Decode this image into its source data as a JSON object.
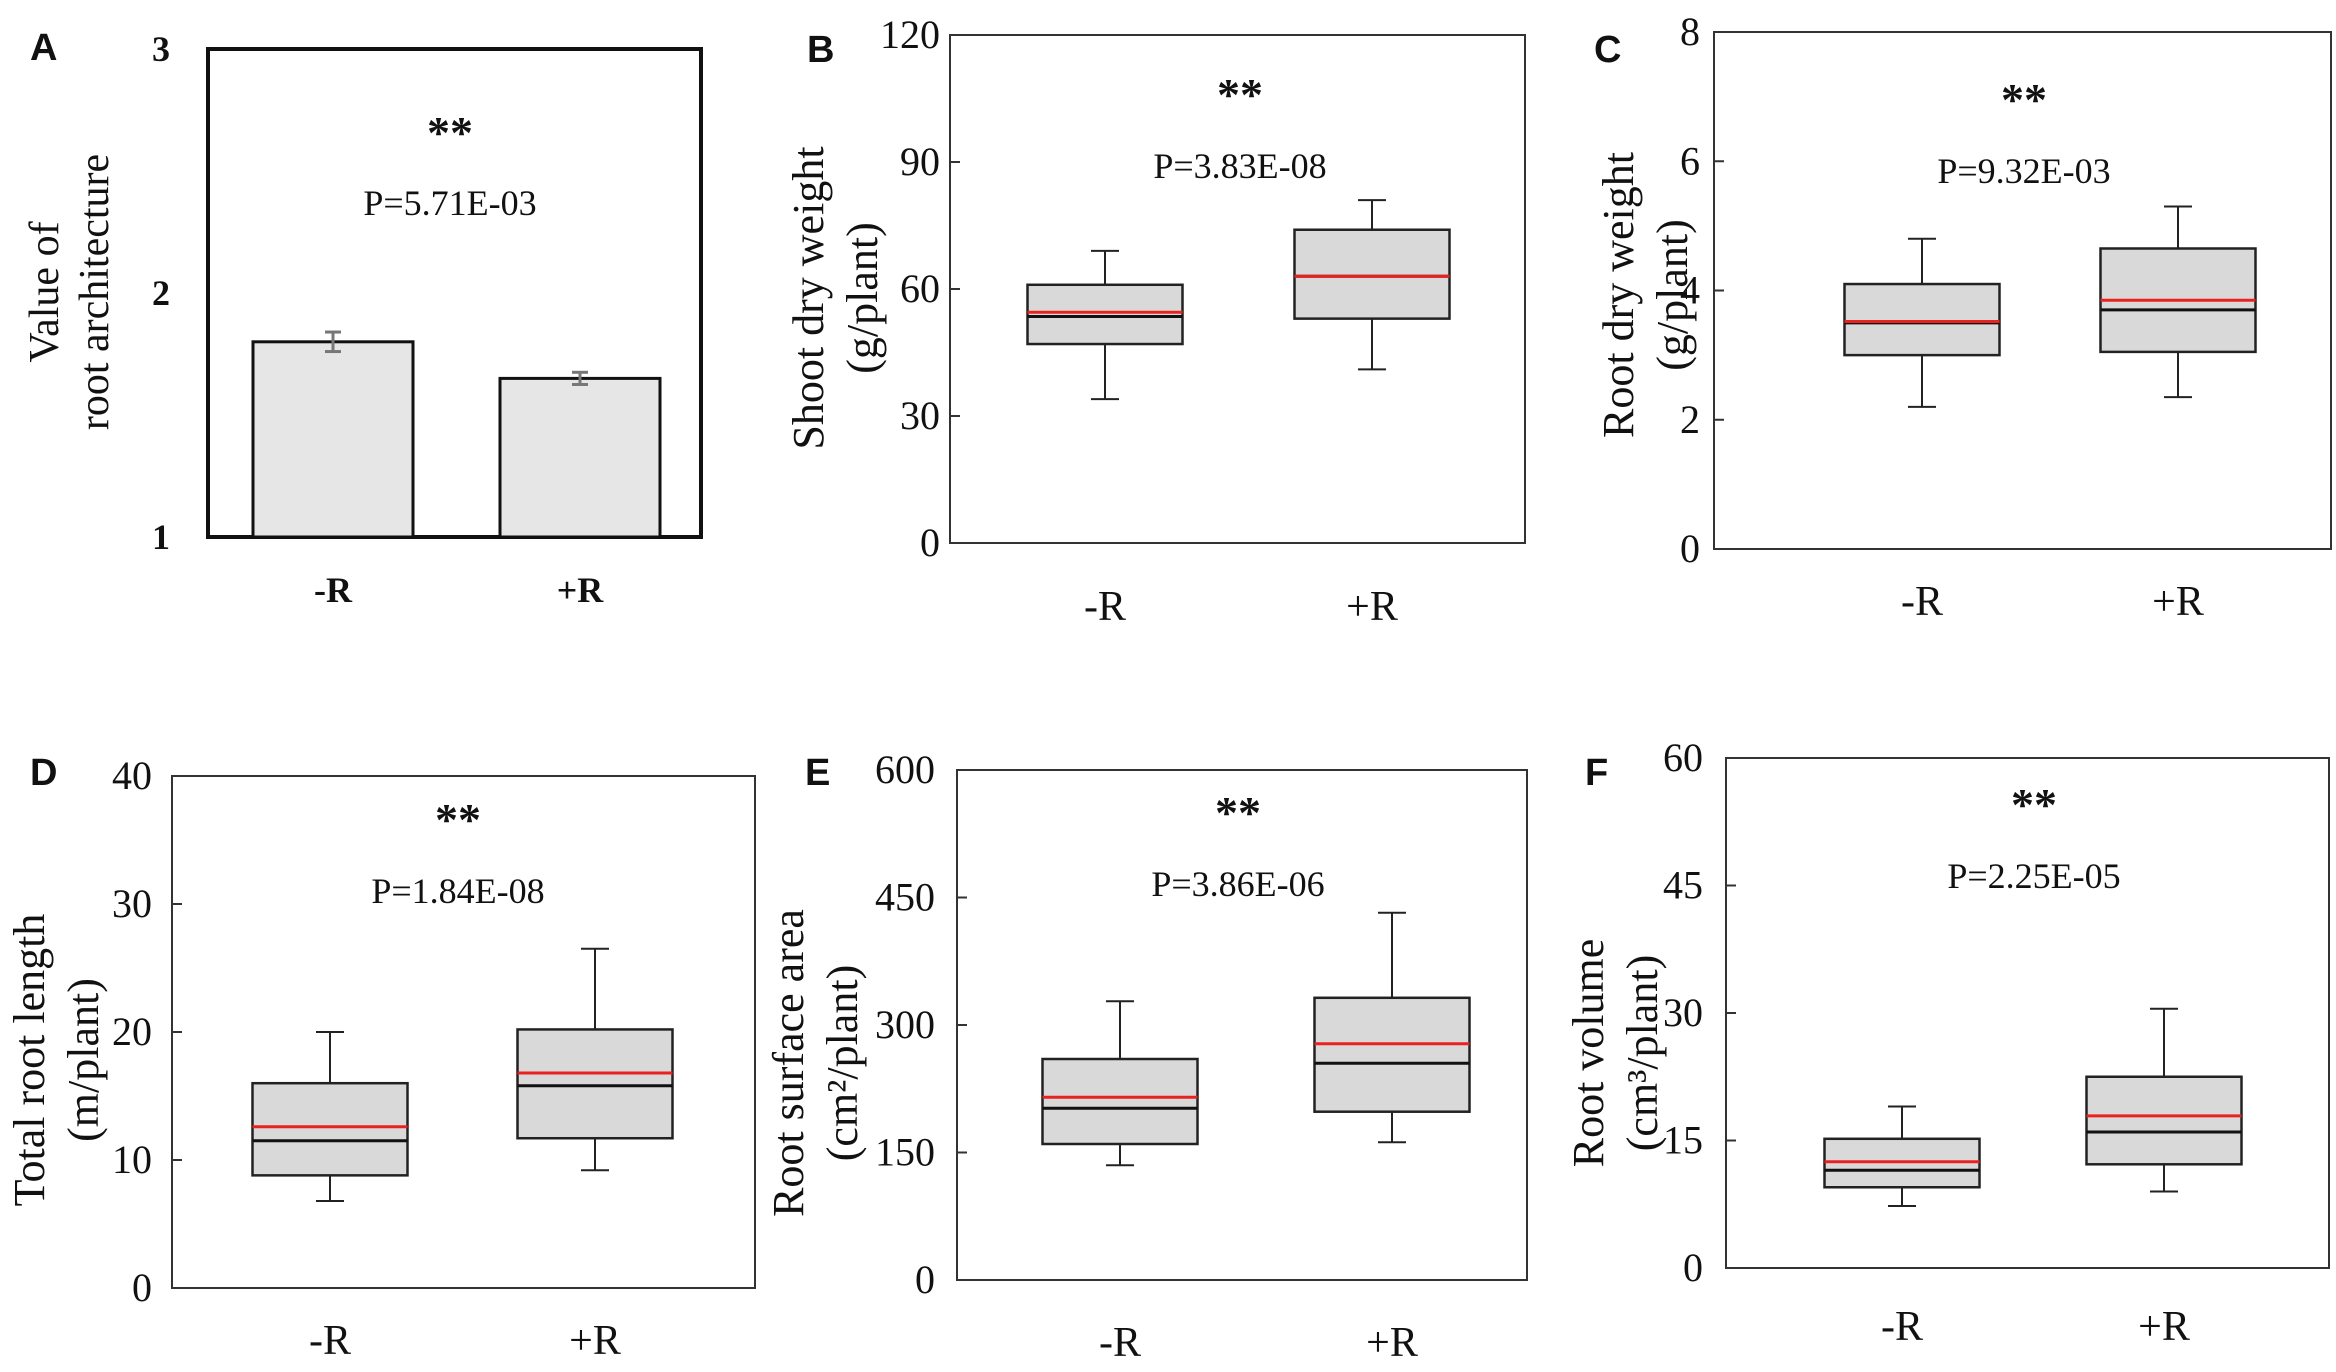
{
  "figure": {
    "colors": {
      "box_fill": "#d9d9d9",
      "bar_fill": "#e6e6e6",
      "mean_line": "#e8231f",
      "median_line": "#111111",
      "frame": "#333333",
      "error_bar": "#777777"
    }
  },
  "chart_data": [
    {
      "panel": "A",
      "type": "bar",
      "categories": [
        "-R",
        "+R"
      ],
      "values": [
        1.8,
        1.65
      ],
      "errors": [
        0.04,
        0.025
      ],
      "ylabel": [
        "Value of",
        "root architecture"
      ],
      "yticks": [
        "1",
        "2",
        "3"
      ],
      "ylim": [
        1,
        3
      ],
      "significance": "**",
      "p_value": "P=5.71E-03"
    },
    {
      "panel": "B",
      "type": "box",
      "categories": [
        "-R",
        "+R"
      ],
      "boxes": [
        {
          "min": 34,
          "q1": 47,
          "median": 53.5,
          "mean": 54.5,
          "q3": 61,
          "max": 69
        },
        {
          "min": 41,
          "q1": 53,
          "median": 63,
          "mean": 63,
          "q3": 74,
          "max": 81
        }
      ],
      "ylabel": [
        "Shoot dry weight",
        "(g/plant)"
      ],
      "yticks": [
        "0",
        "30",
        "60",
        "90",
        "120"
      ],
      "ylim": [
        0,
        120
      ],
      "significance": "**",
      "p_value": "P=3.83E-08"
    },
    {
      "panel": "C",
      "type": "box",
      "categories": [
        "-R",
        "+R"
      ],
      "boxes": [
        {
          "min": 2.2,
          "q1": 3.0,
          "median": 3.5,
          "mean": 3.52,
          "q3": 4.1,
          "max": 4.8
        },
        {
          "min": 2.35,
          "q1": 3.05,
          "median": 3.7,
          "mean": 3.85,
          "q3": 4.65,
          "max": 5.3
        }
      ],
      "ylabel": [
        "Root dry weight",
        "(g/plant)"
      ],
      "yticks": [
        "0",
        "2",
        "4",
        "6",
        "8"
      ],
      "ylim": [
        0,
        8
      ],
      "significance": "**",
      "p_value": "P=9.32E-03"
    },
    {
      "panel": "D",
      "type": "box",
      "categories": [
        "-R",
        "+R"
      ],
      "boxes": [
        {
          "min": 6.8,
          "q1": 8.8,
          "median": 11.5,
          "mean": 12.6,
          "q3": 16.0,
          "max": 20.0
        },
        {
          "min": 9.2,
          "q1": 11.7,
          "median": 15.8,
          "mean": 16.8,
          "q3": 20.2,
          "max": 26.5
        }
      ],
      "ylabel": [
        "Total root length",
        "(m/plant)"
      ],
      "yticks": [
        "0",
        "10",
        "20",
        "30",
        "40"
      ],
      "ylim": [
        0,
        40
      ],
      "significance": "**",
      "p_value": "P=1.84E-08"
    },
    {
      "panel": "E",
      "type": "box",
      "categories": [
        "-R",
        "+R"
      ],
      "boxes": [
        {
          "min": 135,
          "q1": 160,
          "median": 202,
          "mean": 215,
          "q3": 260,
          "max": 328
        },
        {
          "min": 162,
          "q1": 198,
          "median": 255,
          "mean": 278,
          "q3": 332,
          "max": 432
        }
      ],
      "ylabel": [
        "Root surface area",
        "(cm²/plant)"
      ],
      "yticks": [
        "0",
        "150",
        "300",
        "450",
        "600"
      ],
      "ylim": [
        0,
        600
      ],
      "significance": "**",
      "p_value": "P=3.86E-06"
    },
    {
      "panel": "F",
      "type": "box",
      "categories": [
        "-R",
        "+R"
      ],
      "boxes": [
        {
          "min": 7.3,
          "q1": 9.5,
          "median": 11.5,
          "mean": 12.5,
          "q3": 15.2,
          "max": 19.0
        },
        {
          "min": 9.0,
          "q1": 12.2,
          "median": 16.0,
          "mean": 17.9,
          "q3": 22.5,
          "max": 30.5
        }
      ],
      "ylabel": [
        "Root volume",
        "(cm³/plant)"
      ],
      "yticks": [
        "0",
        "15",
        "30",
        "45",
        "60"
      ],
      "ylim": [
        0,
        60
      ],
      "significance": "**",
      "p_value": "P=2.25E-05"
    }
  ]
}
